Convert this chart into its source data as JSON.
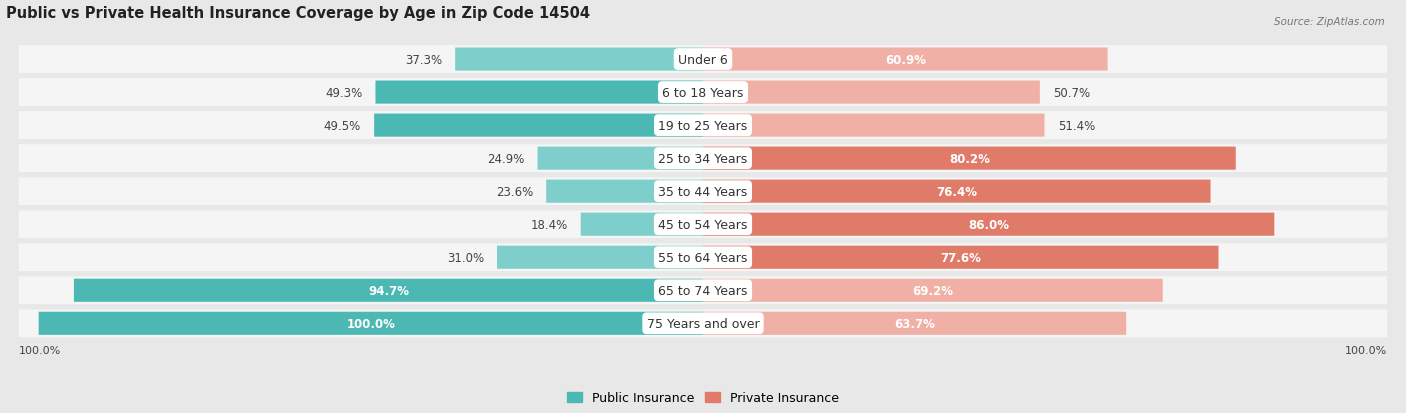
{
  "title": "Public vs Private Health Insurance Coverage by Age in Zip Code 14504",
  "source": "Source: ZipAtlas.com",
  "categories": [
    "Under 6",
    "6 to 18 Years",
    "19 to 25 Years",
    "25 to 34 Years",
    "35 to 44 Years",
    "45 to 54 Years",
    "55 to 64 Years",
    "65 to 74 Years",
    "75 Years and over"
  ],
  "public_values": [
    37.3,
    49.3,
    49.5,
    24.9,
    23.6,
    18.4,
    31.0,
    94.7,
    100.0
  ],
  "private_values": [
    60.9,
    50.7,
    51.4,
    80.2,
    76.4,
    86.0,
    77.6,
    69.2,
    63.7
  ],
  "public_color_dark": "#4bb8b4",
  "public_color_light": "#7ecfcc",
  "private_color_dark": "#e07b6a",
  "private_color_light": "#f0b0a5",
  "bg_color": "#e8e8e8",
  "bar_bg_color": "#e0e0e0",
  "bar_row_bg": "#f5f5f5",
  "title_fontsize": 10.5,
  "label_fontsize": 9,
  "value_fontsize": 8.5
}
